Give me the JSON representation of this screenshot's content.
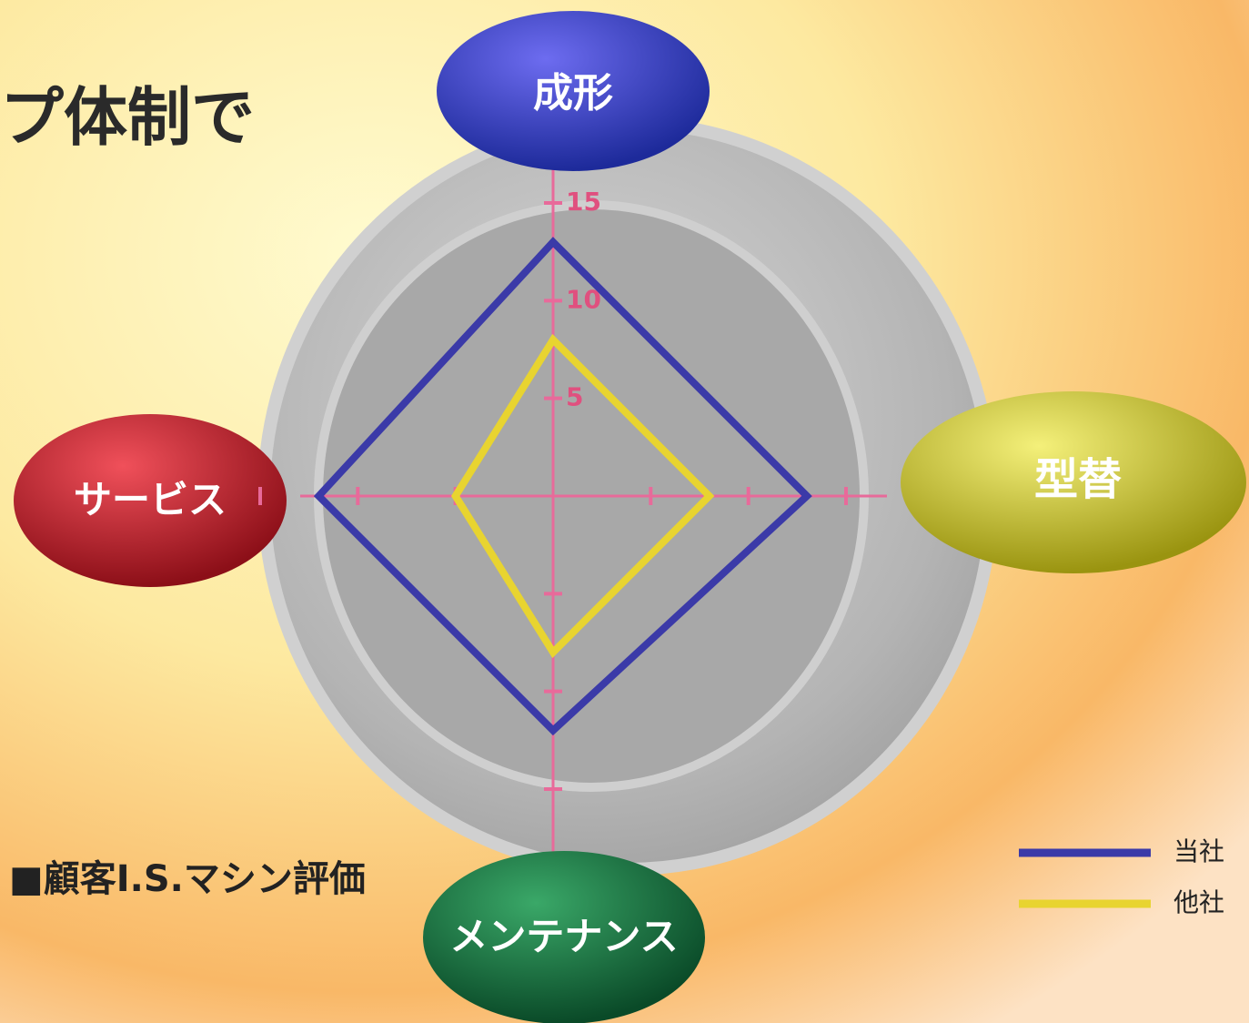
{
  "chart_data": {
    "type": "radar",
    "title": "プ体制で",
    "caption": "■顧客I.S.マシン評価",
    "categories": [
      "成形",
      "型替",
      "メンテナンス",
      "サービス"
    ],
    "series": [
      {
        "name": "当社",
        "color": "#3b3aa8",
        "values": [
          13,
          13,
          12,
          12
        ]
      },
      {
        "name": "他社",
        "color": "#e8d430",
        "values": [
          8,
          8,
          8,
          5
        ]
      }
    ],
    "rlim": [
      0,
      15
    ],
    "rticks": [
      5,
      10,
      15
    ]
  }
}
